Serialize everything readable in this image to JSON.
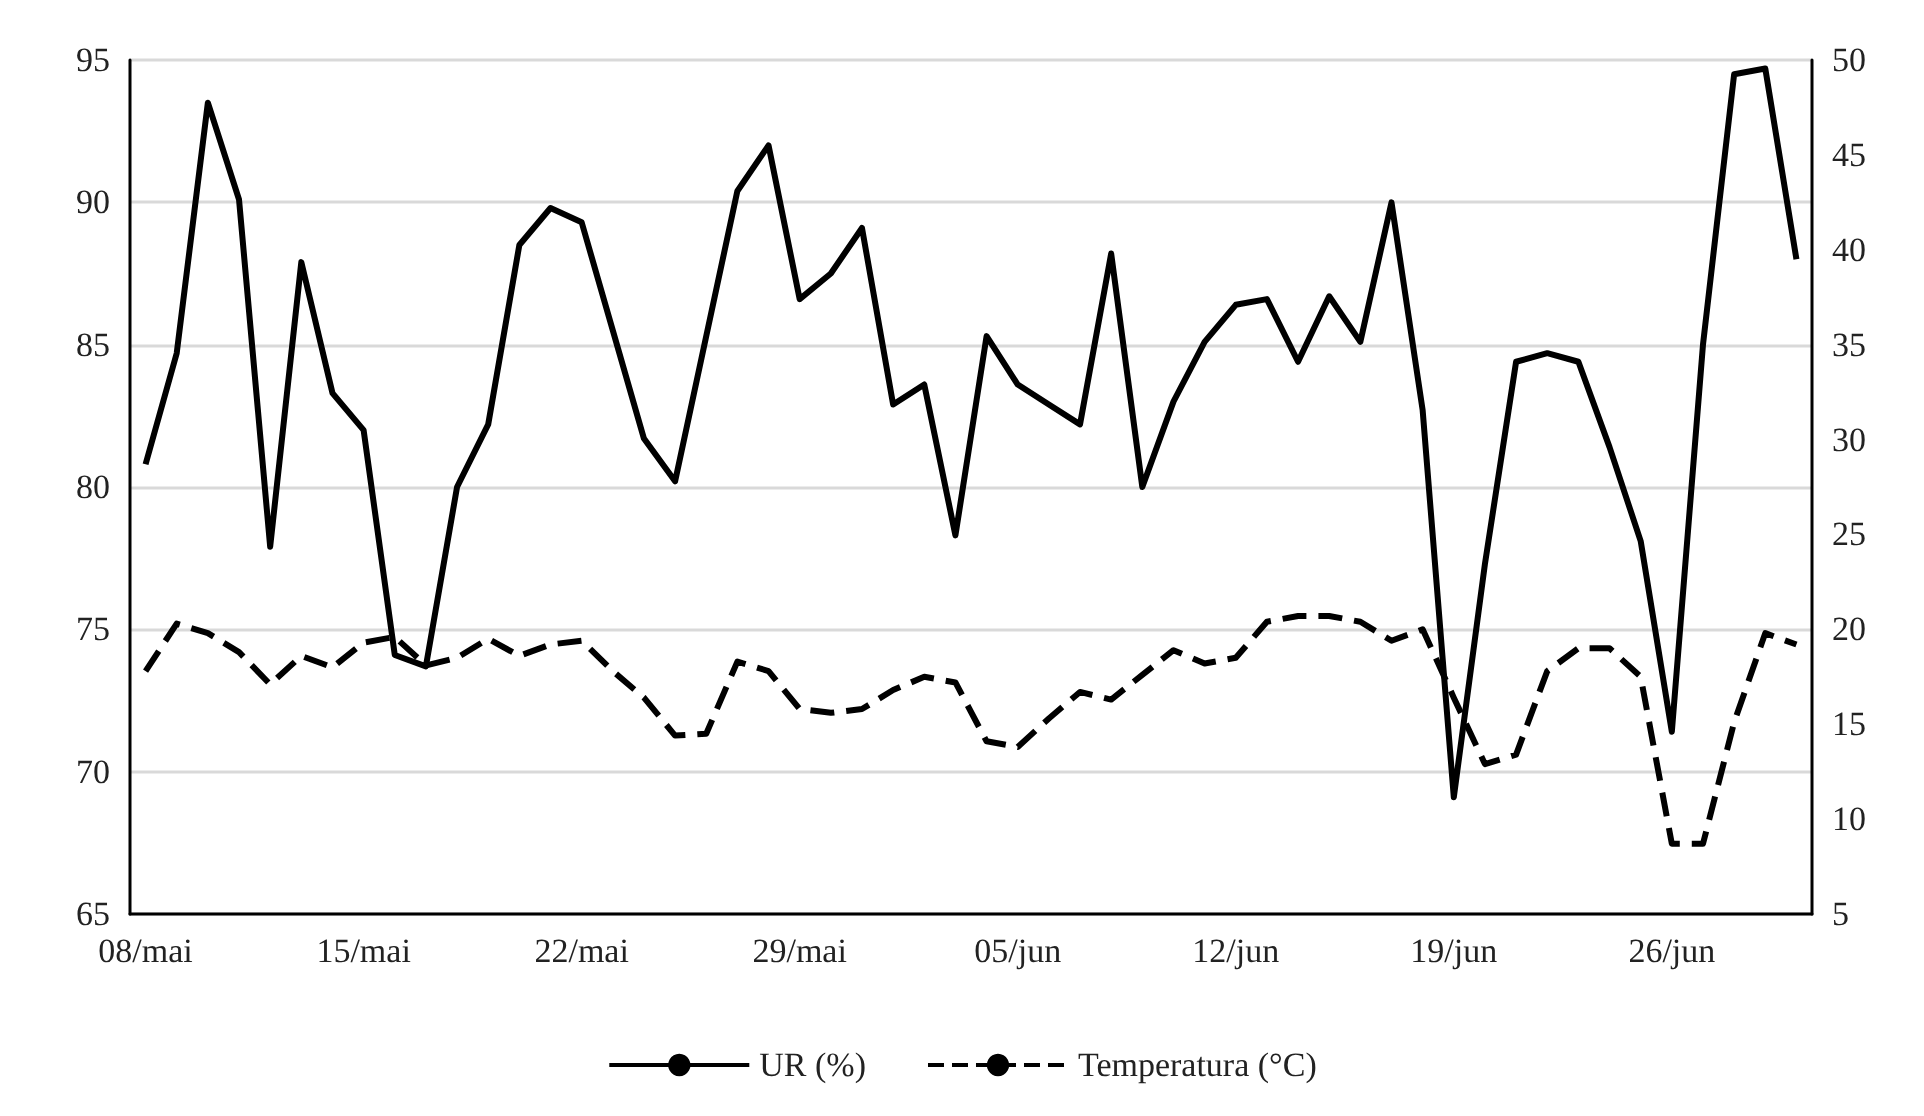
{
  "chart_data": {
    "type": "line",
    "categories": [
      "08/mai",
      null,
      null,
      null,
      null,
      null,
      null,
      "15/mai",
      null,
      null,
      null,
      null,
      null,
      null,
      "22/mai",
      null,
      null,
      null,
      null,
      null,
      null,
      "29/mai",
      null,
      null,
      null,
      null,
      null,
      null,
      "05/jun",
      null,
      null,
      null,
      null,
      null,
      null,
      "12/jun",
      null,
      null,
      null,
      null,
      null,
      null,
      "19/jun",
      null,
      null,
      null,
      null,
      null,
      null,
      "26/jun",
      null,
      null,
      null,
      null
    ],
    "series": [
      {
        "name": "UR (%)",
        "color": "#000000",
        "line_style": "solid",
        "values": [
          80.8,
          84.7,
          93.5,
          90.1,
          77.9,
          87.9,
          83.3,
          82.0,
          74.1,
          73.7,
          80.0,
          82.2,
          88.5,
          89.8,
          89.3,
          85.5,
          81.7,
          80.2,
          85.3,
          90.4,
          92.0,
          86.6,
          87.5,
          89.1,
          82.9,
          83.6,
          78.3,
          85.3,
          83.6,
          82.9,
          82.2,
          88.2,
          80.0,
          83.0,
          85.1,
          86.4,
          86.6,
          84.4,
          86.7,
          85.1,
          90.0,
          82.7,
          69.1,
          77.3,
          84.4,
          84.7,
          84.4,
          81.4,
          78.1,
          71.4,
          85.0,
          94.5,
          94.7,
          88.0
        ]
      },
      {
        "name": "Temperatura (°C)",
        "color": "#000000",
        "line_style": "dashed",
        "axis": "y2",
        "values": [
          17.8,
          20.3,
          19.8,
          18.8,
          17.1,
          18.6,
          18.0,
          19.3,
          19.6,
          18.1,
          18.5,
          19.5,
          18.6,
          19.2,
          19.4,
          17.8,
          16.4,
          14.4,
          14.5,
          18.3,
          17.8,
          15.8,
          15.6,
          15.8,
          16.8,
          17.5,
          17.2,
          14.1,
          13.8,
          15.3,
          16.7,
          16.3,
          17.6,
          18.9,
          18.2,
          18.5,
          20.4,
          20.7,
          20.7,
          20.4,
          19.4,
          20.0,
          16.4,
          12.9,
          13.4,
          17.8,
          19.0,
          19.0,
          17.5,
          8.7,
          8.7,
          15.1,
          19.8,
          19.2
        ]
      }
    ],
    "ylim": [
      65,
      95
    ],
    "yticks": [
      65,
      70,
      75,
      80,
      85,
      90,
      95
    ],
    "y2lim": [
      5,
      50
    ],
    "y2ticks": [
      5,
      10,
      15,
      20,
      25,
      30,
      35,
      40,
      45,
      50
    ],
    "grid": "y",
    "legend": "bottom",
    "marker": "none"
  }
}
